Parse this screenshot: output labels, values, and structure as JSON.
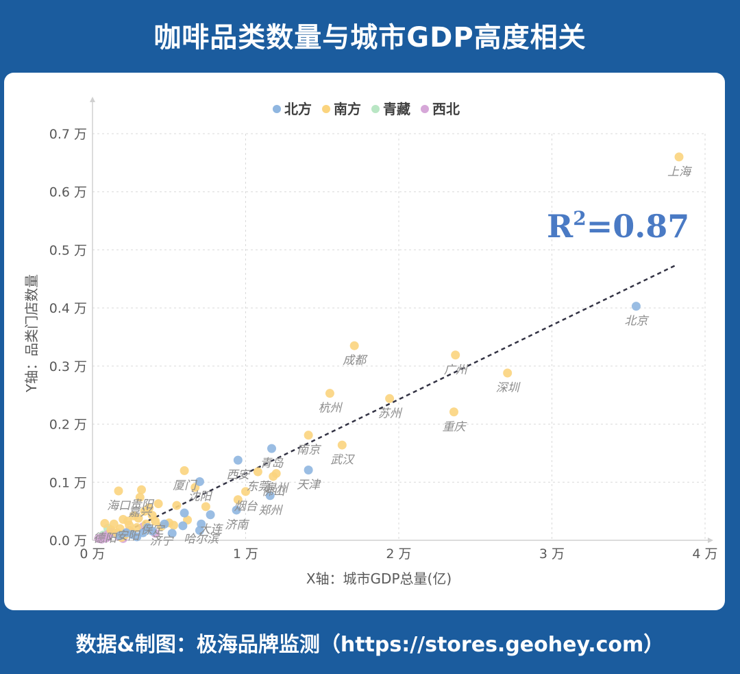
{
  "page": {
    "title": "咖啡品类数量与城市GDP高度相关",
    "footer": "数据&制图：极海品牌监测（https://stores.geohey.com）"
  },
  "colors": {
    "background": "#1b5c9e",
    "north": "#8fb6e0",
    "south": "#fbd47e",
    "qingzang": "#b9e6c4",
    "northwest": "#d6a7d8",
    "trend": "#333344",
    "r2": "#4a7ac4"
  },
  "chart_data": {
    "type": "scatter",
    "xlabel": "X轴：城市GDP总量(亿)",
    "ylabel": "Y轴：品类门店数量",
    "xlim": [
      0,
      40000
    ],
    "ylim": [
      0,
      7000
    ],
    "x_ticks": [
      {
        "v": 0,
        "label": "0 万"
      },
      {
        "v": 10000,
        "label": "1 万"
      },
      {
        "v": 20000,
        "label": "2 万"
      },
      {
        "v": 30000,
        "label": "3 万"
      },
      {
        "v": 40000,
        "label": "4 万"
      }
    ],
    "y_ticks": [
      {
        "v": 0,
        "label": "0.0 万"
      },
      {
        "v": 1000,
        "label": "0.1 万"
      },
      {
        "v": 2000,
        "label": "0.2 万"
      },
      {
        "v": 3000,
        "label": "0.3 万"
      },
      {
        "v": 4000,
        "label": "0.4 万"
      },
      {
        "v": 5000,
        "label": "0.5 万"
      },
      {
        "v": 6000,
        "label": "0.6 万"
      },
      {
        "v": 7000,
        "label": "0.7 万"
      }
    ],
    "grid": true,
    "legend_position": "top-center",
    "annotation": {
      "r2_label": "R",
      "r2_sup": "2",
      "r2_value": "=0.87"
    },
    "trendline": {
      "x": [
        1000,
        38200
      ],
      "y": [
        0,
        4750
      ]
    },
    "series": [
      {
        "name": "北方",
        "key": "north",
        "points": [
          {
            "x": 35500,
            "y": 4030,
            "label": "北京"
          },
          {
            "x": 14100,
            "y": 1210,
            "label": "天津"
          },
          {
            "x": 11700,
            "y": 1580,
            "label": "青岛"
          },
          {
            "x": 11600,
            "y": 770,
            "label": "郑州"
          },
          {
            "x": 9500,
            "y": 1380,
            "label": "西安"
          },
          {
            "x": 9400,
            "y": 520,
            "label": "济南"
          },
          {
            "x": 7700,
            "y": 440,
            "label": "大连"
          },
          {
            "x": 7000,
            "y": 1010,
            "label": "沈阳"
          },
          {
            "x": 7100,
            "y": 280,
            "label": "哈尔滨"
          },
          {
            "x": 7000,
            "y": 170
          },
          {
            "x": 6000,
            "y": 470
          },
          {
            "x": 5900,
            "y": 250
          },
          {
            "x": 4700,
            "y": 280
          },
          {
            "x": 3900,
            "y": 160
          },
          {
            "x": 3300,
            "y": 130
          },
          {
            "x": 2600,
            "y": 100
          },
          {
            "x": 2200,
            "y": 130
          },
          {
            "x": 1800,
            "y": 80
          },
          {
            "x": 3600,
            "y": 220
          },
          {
            "x": 2900,
            "y": 60
          },
          {
            "x": 5200,
            "y": 120
          }
        ]
      },
      {
        "name": "南方",
        "key": "south",
        "points": [
          {
            "x": 38300,
            "y": 6600,
            "label": "上海"
          },
          {
            "x": 17100,
            "y": 3350,
            "label": "成都"
          },
          {
            "x": 23700,
            "y": 3190,
            "label": "广州"
          },
          {
            "x": 27100,
            "y": 2880,
            "label": "深圳"
          },
          {
            "x": 15500,
            "y": 2530,
            "label": "杭州"
          },
          {
            "x": 19400,
            "y": 2440,
            "label": "苏州"
          },
          {
            "x": 23600,
            "y": 2210,
            "label": "重庆"
          },
          {
            "x": 14100,
            "y": 1810,
            "label": "南京"
          },
          {
            "x": 16300,
            "y": 1640,
            "label": "武汉"
          },
          {
            "x": 12000,
            "y": 1150,
            "label": "泉州"
          },
          {
            "x": 10800,
            "y": 1180,
            "label": "东莞"
          },
          {
            "x": 11800,
            "y": 1100,
            "label": "佛山"
          },
          {
            "x": 6000,
            "y": 1200,
            "label": "厦门"
          },
          {
            "x": 10000,
            "y": 840,
            "label": "烟台"
          },
          {
            "x": 1700,
            "y": 850,
            "label": "海口"
          },
          {
            "x": 3200,
            "y": 870,
            "label": "贵阳"
          },
          {
            "x": 3100,
            "y": 740,
            "label": "嘉兴"
          },
          {
            "x": 800,
            "y": 290,
            "label": "德阳"
          },
          {
            "x": 3900,
            "y": 430,
            "label": "保定"
          },
          {
            "x": 2300,
            "y": 330,
            "label": "安阳"
          },
          {
            "x": 4500,
            "y": 240,
            "label": "济宁"
          },
          {
            "x": 9500,
            "y": 700
          },
          {
            "x": 7400,
            "y": 580
          },
          {
            "x": 6700,
            "y": 910
          },
          {
            "x": 5500,
            "y": 600
          },
          {
            "x": 5000,
            "y": 300
          },
          {
            "x": 4300,
            "y": 630
          },
          {
            "x": 3700,
            "y": 560
          },
          {
            "x": 3400,
            "y": 500
          },
          {
            "x": 3000,
            "y": 380
          },
          {
            "x": 2700,
            "y": 420
          },
          {
            "x": 2400,
            "y": 260
          },
          {
            "x": 2000,
            "y": 360
          },
          {
            "x": 1800,
            "y": 200
          },
          {
            "x": 1600,
            "y": 130
          },
          {
            "x": 1400,
            "y": 280
          },
          {
            "x": 1200,
            "y": 180
          },
          {
            "x": 2500,
            "y": 150
          },
          {
            "x": 3500,
            "y": 280
          },
          {
            "x": 4100,
            "y": 330
          },
          {
            "x": 5300,
            "y": 260
          },
          {
            "x": 2100,
            "y": 90
          },
          {
            "x": 2900,
            "y": 220
          },
          {
            "x": 1900,
            "y": 50
          },
          {
            "x": 6200,
            "y": 350
          }
        ]
      },
      {
        "name": "青藏",
        "key": "qingzang",
        "points": [
          {
            "x": 1000,
            "y": 210
          },
          {
            "x": 1400,
            "y": 120
          },
          {
            "x": 700,
            "y": 90
          }
        ]
      },
      {
        "name": "西北",
        "key": "northwest",
        "points": [
          {
            "x": 400,
            "y": 30
          },
          {
            "x": 700,
            "y": 60
          },
          {
            "x": 1000,
            "y": 100
          },
          {
            "x": 1300,
            "y": 140
          },
          {
            "x": 600,
            "y": 20
          },
          {
            "x": 2400,
            "y": 170
          },
          {
            "x": 3300,
            "y": 230
          },
          {
            "x": 4100,
            "y": 120
          },
          {
            "x": 1700,
            "y": 70
          },
          {
            "x": 900,
            "y": 40
          },
          {
            "x": 2000,
            "y": 30
          }
        ]
      }
    ]
  }
}
